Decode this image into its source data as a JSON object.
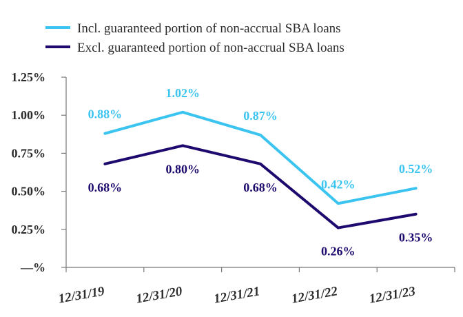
{
  "chart_data": {
    "type": "line",
    "title": "",
    "xlabel": "",
    "ylabel": "",
    "categories": [
      "12/31/19",
      "12/31/20",
      "12/31/21",
      "12/31/22",
      "12/31/23"
    ],
    "ylim": [
      0,
      1.25
    ],
    "y_ticks": [
      {
        "value": 0,
        "label": "—%"
      },
      {
        "value": 0.25,
        "label": "0.25%"
      },
      {
        "value": 0.5,
        "label": "0.50%"
      },
      {
        "value": 0.75,
        "label": "0.75%"
      },
      {
        "value": 1.0,
        "label": "1.00%"
      },
      {
        "value": 1.25,
        "label": "1.25%"
      }
    ],
    "grid": false,
    "legend_placement": "top",
    "series": [
      {
        "name": "Incl. guaranteed portion of non-accrual SBA loans",
        "color": "#3cc4f0",
        "values": [
          0.88,
          1.02,
          0.87,
          0.42,
          0.52
        ],
        "labels": [
          "0.88%",
          "1.02%",
          "0.87%",
          "0.42%",
          "0.52%"
        ],
        "label_position": "above"
      },
      {
        "name": "Excl. guaranteed portion of non-accrual SBA loans",
        "color": "#1e0a6e",
        "values": [
          0.68,
          0.8,
          0.68,
          0.26,
          0.35
        ],
        "labels": [
          "0.68%",
          "0.80%",
          "0.68%",
          "0.26%",
          "0.35%"
        ],
        "label_position": "below"
      }
    ]
  }
}
